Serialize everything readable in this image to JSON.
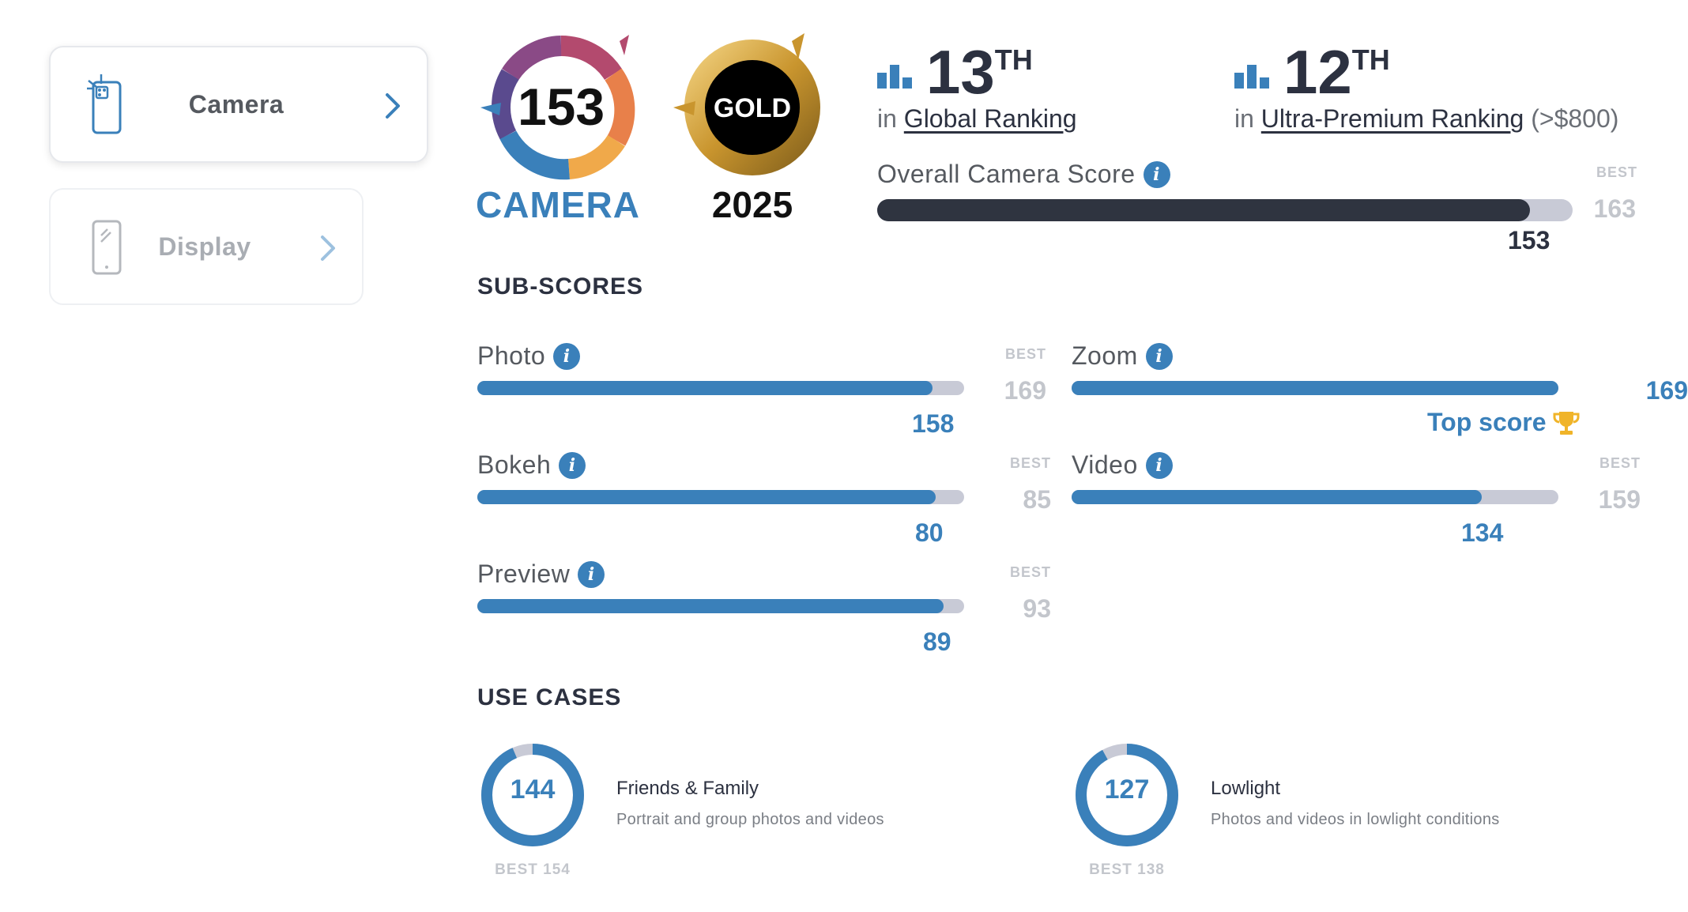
{
  "sidebar": {
    "items": [
      {
        "label": "Camera",
        "icon": "camera-phone-icon",
        "active": true
      },
      {
        "label": "Display",
        "icon": "display-phone-icon",
        "active": false
      }
    ]
  },
  "badges": {
    "camera_score": "153",
    "camera_label": "CAMERA",
    "gold_label": "GOLD",
    "gold_year": "2025"
  },
  "rankings": {
    "global": {
      "rank": "13",
      "suffix": "TH",
      "prefix": "in",
      "link": "Global Ranking",
      "extra": ""
    },
    "segment": {
      "rank": "12",
      "suffix": "TH",
      "prefix": "in",
      "link": "Ultra-Premium Ranking",
      "extra": "(>$800)"
    }
  },
  "overall": {
    "title": "Overall Camera Score",
    "best_label": "BEST",
    "best": "163",
    "value": "153",
    "fraction": 0.9387
  },
  "sub_scores": {
    "heading": "SUB-SCORES",
    "photo": {
      "label": "Photo",
      "value": "158",
      "best_label": "BEST",
      "best": "169",
      "fraction": 0.935
    },
    "bokeh": {
      "label": "Bokeh",
      "value": "80",
      "best_label": "BEST",
      "best": "85",
      "fraction": 0.941
    },
    "preview": {
      "label": "Preview",
      "value": "89",
      "best_label": "BEST",
      "best": "93",
      "fraction": 0.957
    },
    "zoom": {
      "label": "Zoom",
      "value": "169",
      "top_score": "Top score",
      "fraction": 1.0
    },
    "video": {
      "label": "Video",
      "value": "134",
      "best_label": "BEST",
      "best": "159",
      "fraction": 0.843
    }
  },
  "use_cases": {
    "heading": "USE CASES",
    "items": [
      {
        "score": "144",
        "best_text": "BEST 154",
        "title": "Friends & Family",
        "desc": "Portrait and group photos and videos",
        "fraction": 0.935
      },
      {
        "score": "127",
        "best_text": "BEST 138",
        "title": "Lowlight",
        "desc": "Photos and videos in lowlight conditions",
        "fraction": 0.92
      }
    ]
  },
  "colors": {
    "accent_blue": "#3a80ba",
    "dark": "#2f3440",
    "track": "#c8cad6",
    "muted": "#c3c6cc",
    "gold": "#f0b429"
  }
}
